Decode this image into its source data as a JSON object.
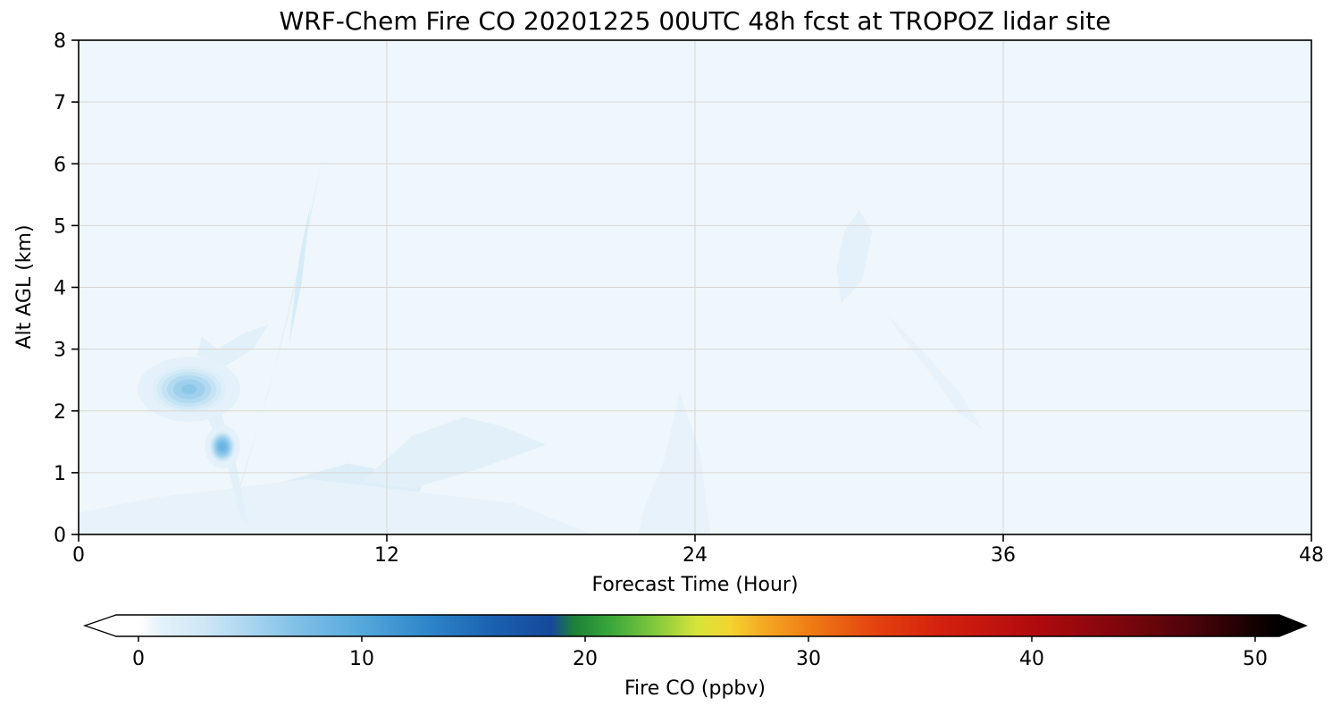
{
  "chart_data": {
    "type": "contour",
    "title": "WRF-Chem Fire CO 20201225 00UTC 48h fcst at TROPOZ lidar site",
    "xlabel": "Forecast Time (Hour)",
    "ylabel": "Alt AGL (km)",
    "xlim": [
      0,
      48
    ],
    "ylim": [
      0,
      8
    ],
    "x_ticks": [
      0,
      12,
      24,
      36,
      48
    ],
    "y_ticks": [
      0,
      1,
      2,
      3,
      4,
      5,
      6,
      7,
      8
    ],
    "grid_x": [
      12,
      24,
      36
    ],
    "grid_y": [
      1,
      2,
      3,
      4,
      5,
      6,
      7
    ],
    "grid_color": "#d8d5d2",
    "background_value": 0.6,
    "colorbar": {
      "label": "Fire CO  (ppbv)",
      "ticks": [
        0,
        10,
        20,
        30,
        40,
        50
      ],
      "min": 0,
      "max": 50,
      "extend": "both",
      "stops": [
        [
          0,
          "#ffffff"
        ],
        [
          1,
          "#e4f1fa"
        ],
        [
          3,
          "#cde7f6"
        ],
        [
          5,
          "#a9d5ef"
        ],
        [
          7,
          "#82c1e7"
        ],
        [
          10,
          "#54a8dc"
        ],
        [
          13,
          "#2e85c8"
        ],
        [
          16,
          "#1a5fb0"
        ],
        [
          18.5,
          "#16489b"
        ],
        [
          19.5,
          "#1d8038"
        ],
        [
          21,
          "#36a43a"
        ],
        [
          23,
          "#7dc63c"
        ],
        [
          25,
          "#d7e43a"
        ],
        [
          26.5,
          "#f4d42f"
        ],
        [
          28,
          "#f5a823"
        ],
        [
          30,
          "#f07d15"
        ],
        [
          33,
          "#e4420f"
        ],
        [
          36,
          "#d3200e"
        ],
        [
          40,
          "#b20b0e"
        ],
        [
          44,
          "#7e060e"
        ],
        [
          47,
          "#4e040a"
        ],
        [
          50,
          "#140101"
        ]
      ]
    },
    "features": [
      {
        "type": "polygon",
        "value": 1.3,
        "points": [
          [
            5.8,
            0.1
          ],
          [
            6.4,
            0.9
          ],
          [
            7.1,
            1.9
          ],
          [
            7.9,
            3.1
          ],
          [
            8.7,
            4.4
          ],
          [
            9.3,
            5.7
          ],
          [
            9.5,
            6.1
          ],
          [
            8.9,
            5.0
          ],
          [
            8.2,
            3.7
          ],
          [
            7.4,
            2.3
          ],
          [
            6.5,
            1.1
          ],
          [
            5.9,
            0.3
          ]
        ]
      },
      {
        "type": "polygon",
        "value": 2.2,
        "points": [
          [
            8.2,
            3.1
          ],
          [
            8.7,
            4.1
          ],
          [
            9.0,
            5.3
          ],
          [
            8.6,
            4.5
          ],
          [
            8.3,
            3.5
          ]
        ]
      },
      {
        "type": "polygon",
        "value": 1.6,
        "points": [
          [
            5.3,
            0.0
          ],
          [
            12.5,
            0.0
          ],
          [
            13.5,
            0.9
          ],
          [
            10.5,
            1.15
          ],
          [
            7.5,
            0.8
          ],
          [
            5.6,
            0.25
          ]
        ]
      },
      {
        "type": "polygon",
        "value": 1.2,
        "points": [
          [
            11.0,
            0.85
          ],
          [
            13.0,
            1.6
          ],
          [
            15.0,
            1.9
          ],
          [
            16.5,
            1.75
          ],
          [
            18.2,
            1.45
          ],
          [
            15.5,
            1.05
          ],
          [
            13.0,
            0.75
          ]
        ]
      },
      {
        "type": "polygon",
        "value": 0.9,
        "points": [
          [
            21.8,
            0.0
          ],
          [
            24.6,
            0.0
          ],
          [
            24.2,
            1.3
          ],
          [
            23.4,
            2.3
          ],
          [
            22.8,
            1.2
          ],
          [
            22.0,
            0.4
          ]
        ]
      },
      {
        "type": "polygon",
        "value": 1.0,
        "points": [
          [
            29.7,
            3.75
          ],
          [
            30.5,
            4.1
          ],
          [
            30.9,
            4.9
          ],
          [
            30.4,
            5.25
          ],
          [
            29.8,
            4.9
          ],
          [
            29.5,
            4.3
          ]
        ]
      },
      {
        "type": "polygon",
        "value": 0.9,
        "points": [
          [
            31.5,
            3.55
          ],
          [
            32.8,
            3.0
          ],
          [
            34.3,
            2.3
          ],
          [
            35.2,
            1.7
          ],
          [
            34.3,
            1.95
          ],
          [
            33.0,
            2.7
          ],
          [
            31.8,
            3.35
          ]
        ]
      },
      {
        "type": "polygon",
        "value": 0.9,
        "points": [
          [
            0.0,
            0.0
          ],
          [
            20.0,
            0.0
          ],
          [
            17.0,
            0.5
          ],
          [
            9.0,
            0.9
          ],
          [
            3.0,
            0.6
          ],
          [
            0.0,
            0.35
          ]
        ]
      },
      {
        "type": "polygon",
        "value": 1.2,
        "points": [
          [
            4.8,
            2.1
          ],
          [
            5.8,
            1.1
          ],
          [
            6.3,
            0.3
          ],
          [
            6.6,
            0.15
          ],
          [
            6.1,
            1.2
          ],
          [
            5.4,
            2.2
          ],
          [
            5.0,
            2.5
          ]
        ]
      },
      {
        "type": "polygon",
        "value": 1.2,
        "points": [
          [
            4.6,
            2.9
          ],
          [
            5.6,
            2.7
          ],
          [
            6.8,
            3.0
          ],
          [
            7.4,
            3.4
          ],
          [
            6.4,
            3.25
          ],
          [
            5.4,
            3.0
          ],
          [
            4.8,
            3.2
          ]
        ]
      },
      {
        "type": "blob",
        "t": 4.3,
        "alt": 2.35,
        "rt": 1.6,
        "ralt": 0.42,
        "peak": 6.5
      },
      {
        "type": "blob",
        "t": 5.6,
        "alt": 1.42,
        "rt": 0.55,
        "ralt": 0.28,
        "peak": 9
      }
    ]
  }
}
